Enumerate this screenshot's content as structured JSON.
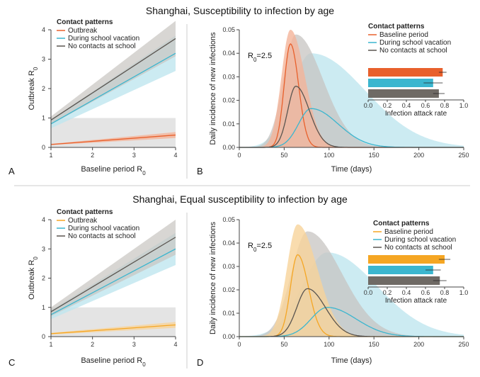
{
  "figure": {
    "colors": {
      "outbreak_top": "#e8602c",
      "outbreak_bottom": "#f5a623",
      "vacation": "#3bb6cf",
      "noschool": "#5a5550",
      "vacation_band": "#bfe6ef",
      "noschool_band": "#c7c4c1",
      "grey_band": "#e4e4e4",
      "bar_baseline_top": "#e8602c",
      "bar_baseline_bottom": "#f5a623",
      "bar_vacation": "#3bb6cf",
      "bar_noschool": "#6f6a65"
    },
    "sections": [
      {
        "title": "Shanghai, Susceptibility to infection by age",
        "left": {
          "panel_label": "A",
          "chart_data": {
            "type": "line",
            "xlabel": "Baseline period R",
            "xlabel_sub": "0",
            "ylabel": "Outbreak R",
            "ylabel_sub": "0",
            "xlim": [
              1,
              4
            ],
            "ylim": [
              0,
              4
            ],
            "xticks": [
              "1",
              "2",
              "3",
              "4"
            ],
            "yticks": [
              "0",
              "1",
              "2",
              "3",
              "4"
            ],
            "legend_title": "Contact patterns",
            "threshold_band": [
              0,
              1
            ],
            "series": [
              {
                "name": "Outbreak",
                "key": "outbreak",
                "x": [
                  1,
                  4
                ],
                "y": [
                  0.1,
                  0.42
                ],
                "band_low": [
                  0.08,
                  0.32
                ],
                "band_high": [
                  0.12,
                  0.52
                ]
              },
              {
                "name": "During school vacation",
                "key": "vacation",
                "x": [
                  1,
                  4
                ],
                "y": [
                  0.8,
                  3.2
                ],
                "band_low": [
                  0.65,
                  2.6
                ],
                "band_high": [
                  0.95,
                  3.8
                ]
              },
              {
                "name": "No contacts at school",
                "key": "noschool",
                "x": [
                  1,
                  4
                ],
                "y": [
                  0.93,
                  3.7
                ],
                "band_low": [
                  0.78,
                  3.1
                ],
                "band_high": [
                  1.05,
                  4.3
                ]
              }
            ]
          }
        },
        "right": {
          "panel_label": "B",
          "r0_label": "R",
          "r0_sub": "0",
          "r0_value": "=2.5",
          "chart_data": {
            "type": "line",
            "xlabel": "Time (days)",
            "ylabel": "Daily incidence of new infections",
            "xlim": [
              0,
              250
            ],
            "ylim": [
              0,
              0.05
            ],
            "xticks": [
              "0",
              "50",
              "100",
              "150",
              "200",
              "250"
            ],
            "yticks": [
              "0.00",
              "0.01",
              "0.02",
              "0.03",
              "0.04",
              "0.05"
            ],
            "legend_title": "Contact patterns",
            "series": [
              {
                "name": "Baseline period",
                "key": "outbreak",
                "peak_day": 57,
                "peak": 0.044,
                "rise_width": 7,
                "fall_width": 9,
                "band_peak": 0.052,
                "band_rise": 10,
                "band_fall": 16
              },
              {
                "name": "During school vacation",
                "key": "vacation",
                "peak_day": 80,
                "peak": 0.0165,
                "rise_width": 14,
                "fall_width": 30,
                "band_peak": 0.04,
                "band_rise": 22,
                "band_fall": 60
              },
              {
                "name": "No contacts at school",
                "key": "noschool",
                "peak_day": 63,
                "peak": 0.026,
                "rise_width": 9,
                "fall_width": 15,
                "band_peak": 0.048,
                "band_rise": 14,
                "band_fall": 30
              }
            ]
          },
          "inset": {
            "type": "bar",
            "orientation": "horizontal",
            "xlabel": "Infection attack rate",
            "xlim": [
              0,
              1
            ],
            "xticks": [
              "0.0",
              "0.2",
              "0.4",
              "0.6",
              "0.8",
              "1.0"
            ],
            "values": [
              0.78,
              0.68,
              0.74
            ],
            "errors": [
              0.04,
              0.1,
              0.06
            ],
            "keys": [
              "outbreak",
              "vacation",
              "noschool"
            ]
          }
        }
      },
      {
        "title": "Shanghai, Equal susceptibility to infection by age",
        "left": {
          "panel_label": "C",
          "chart_data": {
            "type": "line",
            "xlabel": "Baseline period R",
            "xlabel_sub": "0",
            "ylabel": "Outbreak R",
            "ylabel_sub": "0",
            "xlim": [
              1,
              4
            ],
            "ylim": [
              0,
              4
            ],
            "xticks": [
              "1",
              "2",
              "3",
              "4"
            ],
            "yticks": [
              "0",
              "1",
              "2",
              "3",
              "4"
            ],
            "legend_title": "Contact patterns",
            "threshold_band": [
              0,
              1
            ],
            "series": [
              {
                "name": "Outbreak",
                "key": "outbreak",
                "x": [
                  1,
                  4
                ],
                "y": [
                  0.1,
                  0.4
                ],
                "band_low": [
                  0.07,
                  0.3
                ],
                "band_high": [
                  0.13,
                  0.5
                ]
              },
              {
                "name": "During school vacation",
                "key": "vacation",
                "x": [
                  1,
                  4
                ],
                "y": [
                  0.75,
                  3.0
                ],
                "band_low": [
                  0.6,
                  2.45
                ],
                "band_high": [
                  0.9,
                  3.55
                ]
              },
              {
                "name": "No contacts at school",
                "key": "noschool",
                "x": [
                  1,
                  4
                ],
                "y": [
                  0.85,
                  3.4
                ],
                "band_low": [
                  0.7,
                  2.8
                ],
                "band_high": [
                  1.0,
                  4.0
                ]
              }
            ]
          }
        },
        "right": {
          "panel_label": "D",
          "r0_label": "R",
          "r0_sub": "0",
          "r0_value": "=2.5",
          "chart_data": {
            "type": "line",
            "xlabel": "Time (days)",
            "ylabel": "Daily incidence of new infections",
            "xlim": [
              0,
              250
            ],
            "ylim": [
              0,
              0.05
            ],
            "xticks": [
              "0",
              "50",
              "100",
              "150",
              "200",
              "250"
            ],
            "yticks": [
              "0.00",
              "0.01",
              "0.02",
              "0.03",
              "0.04",
              "0.05"
            ],
            "legend_title": "Contact patterns",
            "series": [
              {
                "name": "Baseline period",
                "key": "outbreak",
                "peak_day": 65,
                "peak": 0.035,
                "rise_width": 8,
                "fall_width": 12,
                "band_peak": 0.048,
                "band_rise": 12,
                "band_fall": 22
              },
              {
                "name": "During school vacation",
                "key": "vacation",
                "peak_day": 98,
                "peak": 0.0125,
                "rise_width": 18,
                "fall_width": 32,
                "band_peak": 0.036,
                "band_rise": 28,
                "band_fall": 55
              },
              {
                "name": "No contacts at school",
                "key": "noschool",
                "peak_day": 76,
                "peak": 0.0205,
                "rise_width": 12,
                "fall_width": 20,
                "band_peak": 0.045,
                "band_rise": 18,
                "band_fall": 38
              }
            ]
          },
          "inset": {
            "type": "bar",
            "orientation": "horizontal",
            "xlabel": "Infection attack rate",
            "xlim": [
              0,
              1
            ],
            "xticks": [
              "0.0",
              "0.2",
              "0.4",
              "0.6",
              "0.8",
              "1.0"
            ],
            "values": [
              0.8,
              0.68,
              0.75
            ],
            "errors": [
              0.06,
              0.08,
              0.07
            ],
            "keys": [
              "outbreak",
              "vacation",
              "noschool"
            ]
          }
        }
      }
    ]
  }
}
